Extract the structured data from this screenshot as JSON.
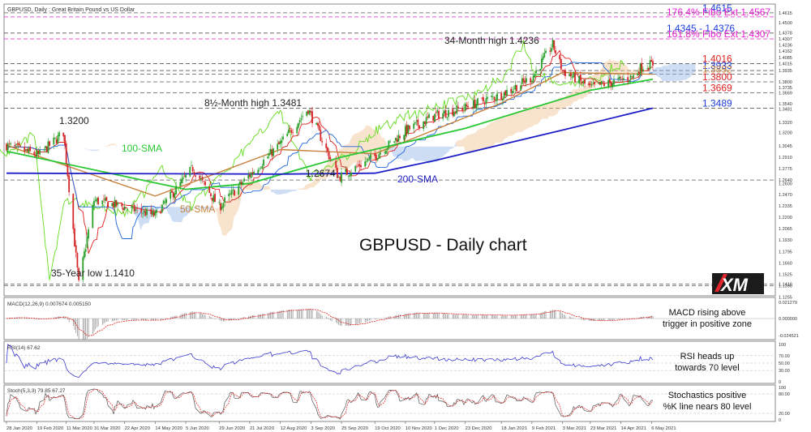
{
  "header": {
    "title": "GBPUSD, Daily : Great Britain Pound vs US Dollar"
  },
  "brand": {
    "logo_text": "XM",
    "logo_color": "#ffffff",
    "logo_bg": "#1b1b1b",
    "accent": "#e0252b"
  },
  "main_title": "GBPUSD - Daily chart",
  "colors": {
    "price_up": "#2ca02c",
    "price_down": "#d62728",
    "sma50": "#c8823c",
    "sma100": "#28c832",
    "sma200": "#1e1ec8",
    "tenkan": "#e01e1e",
    "kijun": "#1e64dc",
    "chikou": "#64dc1e",
    "cloud_bull": "#f0c090",
    "cloud_bear": "#90b4e6",
    "fib_pink": "#e51fd2",
    "level_blue": "#1e3cdc",
    "level_red": "#e02020",
    "level_orange": "#c8823c"
  },
  "annotations": {
    "low": "35-Year low 1.1410",
    "high_1_3200": "1.3200",
    "sma100": "100-SMA",
    "sma50": "50-SMA",
    "sma200": "200-SMA",
    "month_high_8": "8½-Month high 1.3481",
    "low_1_2674": "1.2674",
    "month_high_34": "34-Month high 1.4236"
  },
  "levels": [
    {
      "text": "1.4615",
      "color": "#1e3cdc",
      "value": 1.4615
    },
    {
      "text": "176.4% Fibo Ext 1.4567",
      "color": "#e51fd2",
      "value": 1.4567
    },
    {
      "text": "1.4345 - 1.4376",
      "color": "#1e3cdc",
      "value": 1.4376
    },
    {
      "text": "161.8% Fibo Ext 1.4307",
      "color": "#e51fd2",
      "value": 1.4307
    },
    {
      "text": "1.4016",
      "color": "#e02020",
      "value": 1.4016
    },
    {
      "text": "1.3933",
      "color": "#1e3cdc",
      "value": 1.3933
    },
    {
      "text": "1.3892",
      "color": "#c8823c",
      "value": 1.3892
    },
    {
      "text": "1.3800",
      "color": "#e02020",
      "value": 1.38
    },
    {
      "text": "1.3669",
      "color": "#e02020",
      "value": 1.3669
    },
    {
      "text": "1.3489",
      "color": "#1e3cdc",
      "value": 1.3489
    }
  ],
  "price_axis_ticks": [
    "1.4615",
    "1.4500",
    "1.4378",
    "1.4307",
    "1.4236",
    "1.4162",
    "1.4085",
    "1.4015",
    "1.3935",
    "1.3800",
    "1.3735",
    "1.3669",
    "1.3540",
    "1.3481",
    "1.3320",
    "1.3200",
    "1.3045",
    "1.2910",
    "1.2775",
    "1.2640",
    "1.2600",
    "1.2470",
    "1.2335",
    "1.2200",
    "1.2065",
    "1.1930",
    "1.1795",
    "1.1660",
    "1.1525",
    "1.1410",
    "1.1390",
    "1.1255"
  ],
  "date_axis": [
    "28 Jan 2020",
    "19 Feb 2020",
    "11 Mar 2020",
    "31 Mar 2020",
    "22 Apr 2020",
    "14 May 2020",
    "5 Jun 2020",
    "29 Jun 2020",
    "21 Jul 2020",
    "12 Aug 2020",
    "3 Sep 2020",
    "25 Sep 2020",
    "19 Oct 2020",
    "10 Nov 2020",
    "1 Dec 2020",
    "23 Dec 2020",
    "18 Jan 2021",
    "9 Feb 2021",
    "3 Mar 2021",
    "23 Mar 2021",
    "14 Apr 2021",
    "6 May 2021"
  ],
  "macd": {
    "header": "MACD(12,26,9) 0.007674 0.005150",
    "ticks": [
      "0.021279",
      "0.000000",
      "-0.024521"
    ],
    "comment_line1": "MACD rising above",
    "comment_line2": "trigger in positive zone"
  },
  "rsi": {
    "header": "RSI(14) 67.62",
    "ticks": [
      "100",
      "70.00",
      "50.00",
      "30.00",
      "0"
    ],
    "comment_line1": "RSI heads up",
    "comment_line2": "towards 70 level"
  },
  "stoch": {
    "header": "Stoch(5,3,3) 79.85 67.27",
    "ticks": [
      "100",
      "80.00",
      "20.00",
      "0"
    ],
    "comment_line1": "Stochastics positive",
    "comment_line2": "%K line nears 80 level"
  },
  "chart_data": {
    "type": "candlestick",
    "title": "GBPUSD - Daily chart",
    "x_range": [
      "28 Jan 2020",
      "7 May 2021"
    ],
    "ylim": [
      1.13,
      1.47
    ],
    "grid": false,
    "key_points": [
      {
        "date": "28 Jan 2020",
        "close": 1.305
      },
      {
        "date": "20 Feb 2020",
        "close": 1.293
      },
      {
        "date": "9 Mar 2020",
        "close": 1.32
      },
      {
        "date": "20 Mar 2020",
        "close": 1.141
      },
      {
        "date": "31 Mar 2020",
        "close": 1.24
      },
      {
        "date": "22 Apr 2020",
        "close": 1.232
      },
      {
        "date": "14 May 2020",
        "close": 1.222
      },
      {
        "date": "10 Jun 2020",
        "close": 1.278
      },
      {
        "date": "29 Jun 2020",
        "close": 1.232
      },
      {
        "date": "21 Jul 2020",
        "close": 1.27
      },
      {
        "date": "12 Aug 2020",
        "close": 1.307
      },
      {
        "date": "1 Sep 2020",
        "close": 1.348
      },
      {
        "date": "23 Sep 2020",
        "close": 1.267
      },
      {
        "date": "19 Oct 2020",
        "close": 1.292
      },
      {
        "date": "10 Nov 2020",
        "close": 1.322
      },
      {
        "date": "1 Dec 2020",
        "close": 1.34
      },
      {
        "date": "23 Dec 2020",
        "close": 1.35
      },
      {
        "date": "18 Jan 2021",
        "close": 1.365
      },
      {
        "date": "9 Feb 2021",
        "close": 1.385
      },
      {
        "date": "24 Feb 2021",
        "close": 1.424
      },
      {
        "date": "3 Mar 2021",
        "close": 1.393
      },
      {
        "date": "23 Mar 2021",
        "close": 1.373
      },
      {
        "date": "14 Apr 2021",
        "close": 1.382
      },
      {
        "date": "23 Apr 2021",
        "close": 1.387
      },
      {
        "date": "29 Apr 2021",
        "close": 1.398
      },
      {
        "date": "7 May 2021",
        "close": 1.401
      }
    ],
    "sma50": [
      {
        "date": "28 Jan 2020",
        "value": 1.305
      },
      {
        "date": "14 May 2020",
        "value": 1.245
      },
      {
        "date": "12 Aug 2020",
        "value": 1.3
      },
      {
        "date": "19 Oct 2020",
        "value": 1.295
      },
      {
        "date": "18 Jan 2021",
        "value": 1.355
      },
      {
        "date": "3 Mar 2021",
        "value": 1.391
      },
      {
        "date": "7 May 2021",
        "value": 1.389
      }
    ],
    "sma100": [
      {
        "date": "28 Jan 2020",
        "value": 1.298
      },
      {
        "date": "5 Jun 2020",
        "value": 1.253
      },
      {
        "date": "21 Jul 2020",
        "value": 1.26
      },
      {
        "date": "25 Sep 2020",
        "value": 1.291
      },
      {
        "date": "23 Dec 2020",
        "value": 1.325
      },
      {
        "date": "23 Mar 2021",
        "value": 1.37
      },
      {
        "date": "7 May 2021",
        "value": 1.383
      }
    ],
    "sma200": [
      {
        "date": "28 Jan 2020",
        "value": 1.272
      },
      {
        "date": "12 Aug 2020",
        "value": 1.271
      },
      {
        "date": "19 Oct 2020",
        "value": 1.272
      },
      {
        "date": "1 Dec 2020",
        "value": 1.287
      },
      {
        "date": "3 Mar 2021",
        "value": 1.323
      },
      {
        "date": "7 May 2021",
        "value": 1.3489
      }
    ]
  }
}
